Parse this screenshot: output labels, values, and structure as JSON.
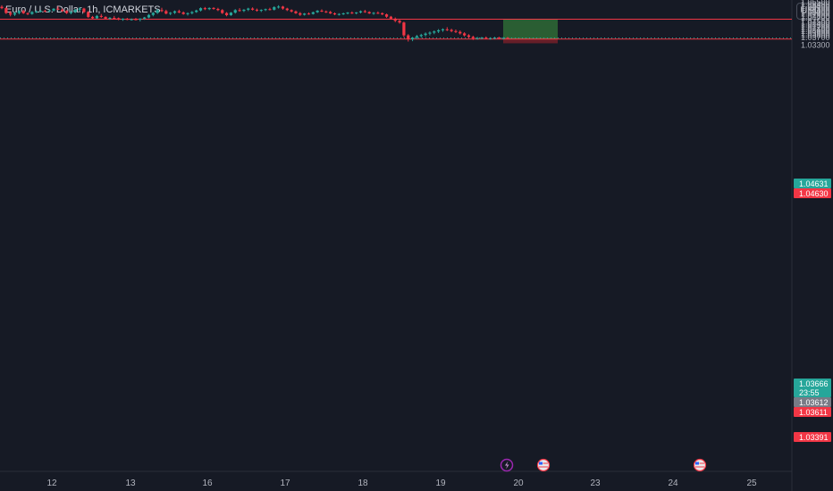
{
  "header": {
    "symbol_title": "Euro / U.S. Dollar, 1h, ICMARKETS",
    "currency_button": "USD"
  },
  "colors": {
    "background": "#161a25",
    "bull": "#26a69a",
    "bear": "#f23645",
    "level_line": "#f23645",
    "profit_zone": "#2e6b36",
    "loss_zone": "#6f1f29"
  },
  "icons": [
    "lightning-event-icon",
    "us-flag-icon",
    "us-flag-icon"
  ],
  "chart_data": {
    "type": "candlestick",
    "instrument": "Euro / U.S. Dollar",
    "interval": "1h",
    "exchange": "ICMARKETS",
    "ylim": [
      1.0327,
      1.0562
    ],
    "y_ticks": [
      "1.05500",
      "1.05400",
      "1.05300",
      "1.05200",
      "1.05100",
      "1.05000",
      "1.04900",
      "1.04800",
      "1.04700",
      "1.04500",
      "1.04400",
      "1.04300",
      "1.04200",
      "1.04100",
      "1.04000",
      "1.03900",
      "1.03800",
      "1.03700",
      "1.03300"
    ],
    "x_ticks": [
      "12",
      "13",
      "16",
      "17",
      "18",
      "19",
      "20",
      "23",
      "24",
      "25"
    ],
    "horizontal_levels": [
      1.0463,
      1.03611
    ],
    "price_labels": [
      {
        "text": "1.04631",
        "color": "#26a69a"
      },
      {
        "text": "1.04630",
        "color": "#f23645"
      },
      {
        "text": "1.03666",
        "color": "#26a69a"
      },
      {
        "text": "23:55",
        "color": "#26a69a"
      },
      {
        "text": "1.03612",
        "color": "#787b86"
      },
      {
        "text": "1.03611",
        "color": "#f23645"
      },
      {
        "text": "1.03391",
        "color": "#f23645"
      }
    ],
    "position": {
      "entry": 1.03611,
      "take_profit": 1.0463,
      "stop_loss": 1.03391,
      "current": 1.03666
    },
    "candles": [
      [
        1.0527,
        1.0535,
        1.0515,
        1.052
      ],
      [
        1.052,
        1.0525,
        1.049,
        1.0495
      ],
      [
        1.0495,
        1.0505,
        1.0478,
        1.0487
      ],
      [
        1.0487,
        1.05,
        1.048,
        1.0495
      ],
      [
        1.0495,
        1.051,
        1.0488,
        1.0505
      ],
      [
        1.0505,
        1.0512,
        1.049,
        1.0494
      ],
      [
        1.0494,
        1.0498,
        1.0484,
        1.049
      ],
      [
        1.049,
        1.0505,
        1.0486,
        1.05
      ],
      [
        1.05,
        1.0508,
        1.0495,
        1.0503
      ],
      [
        1.0503,
        1.051,
        1.0498,
        1.0506
      ],
      [
        1.0506,
        1.0512,
        1.05,
        1.0504
      ],
      [
        1.0504,
        1.0512,
        1.0497,
        1.0508
      ],
      [
        1.0508,
        1.052,
        1.0502,
        1.0517
      ],
      [
        1.0517,
        1.053,
        1.051,
        1.0512
      ],
      [
        1.0512,
        1.0518,
        1.05,
        1.0505
      ],
      [
        1.0505,
        1.051,
        1.049,
        1.0495
      ],
      [
        1.0495,
        1.0505,
        1.0488,
        1.05
      ],
      [
        1.05,
        1.0515,
        1.0495,
        1.0512
      ],
      [
        1.0512,
        1.0525,
        1.0505,
        1.0518
      ],
      [
        1.0518,
        1.0522,
        1.0495,
        1.05
      ],
      [
        1.05,
        1.0505,
        1.047,
        1.0475
      ],
      [
        1.0475,
        1.048,
        1.0462,
        1.0468
      ],
      [
        1.0468,
        1.0485,
        1.0465,
        1.048
      ],
      [
        1.048,
        1.049,
        1.047,
        1.0475
      ],
      [
        1.0475,
        1.0478,
        1.0462,
        1.0466
      ],
      [
        1.0466,
        1.0474,
        1.046,
        1.047
      ],
      [
        1.047,
        1.048,
        1.0465,
        1.0468
      ],
      [
        1.0468,
        1.0472,
        1.0458,
        1.0462
      ],
      [
        1.0462,
        1.0468,
        1.0455,
        1.0465
      ],
      [
        1.0465,
        1.047,
        1.0458,
        1.046
      ],
      [
        1.046,
        1.0467,
        1.0456,
        1.0463
      ],
      [
        1.0463,
        1.047,
        1.0457,
        1.0461
      ],
      [
        1.0461,
        1.0468,
        1.0452,
        1.0466
      ],
      [
        1.0466,
        1.0475,
        1.046,
        1.0472
      ],
      [
        1.0472,
        1.049,
        1.0468,
        1.0485
      ],
      [
        1.0485,
        1.05,
        1.0478,
        1.0496
      ],
      [
        1.0496,
        1.0515,
        1.049,
        1.051
      ],
      [
        1.051,
        1.0522,
        1.05,
        1.0505
      ],
      [
        1.0505,
        1.0512,
        1.0488,
        1.0492
      ],
      [
        1.0492,
        1.05,
        1.0484,
        1.0496
      ],
      [
        1.0496,
        1.0508,
        1.049,
        1.0504
      ],
      [
        1.0504,
        1.0512,
        1.0494,
        1.0498
      ],
      [
        1.0498,
        1.0503,
        1.0486,
        1.049
      ],
      [
        1.049,
        1.0498,
        1.0482,
        1.0494
      ],
      [
        1.0494,
        1.0505,
        1.0488,
        1.05
      ],
      [
        1.05,
        1.0512,
        1.0496,
        1.0508
      ],
      [
        1.0508,
        1.0524,
        1.0503,
        1.052
      ],
      [
        1.052,
        1.0526,
        1.051,
        1.0515
      ],
      [
        1.0515,
        1.0524,
        1.051,
        1.0521
      ],
      [
        1.0521,
        1.0525,
        1.0512,
        1.0516
      ],
      [
        1.0516,
        1.0522,
        1.0505,
        1.051
      ],
      [
        1.051,
        1.0515,
        1.049,
        1.0495
      ],
      [
        1.0495,
        1.05,
        1.0478,
        1.0484
      ],
      [
        1.0484,
        1.05,
        1.048,
        1.0497
      ],
      [
        1.0497,
        1.0515,
        1.0492,
        1.051
      ],
      [
        1.051,
        1.052,
        1.0502,
        1.0506
      ],
      [
        1.0506,
        1.0515,
        1.05,
        1.0512
      ],
      [
        1.0512,
        1.0522,
        1.0505,
        1.0518
      ],
      [
        1.0518,
        1.0524,
        1.0508,
        1.0512
      ],
      [
        1.0512,
        1.0518,
        1.0502,
        1.0508
      ],
      [
        1.0508,
        1.0514,
        1.05,
        1.0511
      ],
      [
        1.0511,
        1.0518,
        1.0505,
        1.0515
      ],
      [
        1.0515,
        1.0522,
        1.0508,
        1.0512
      ],
      [
        1.0512,
        1.053,
        1.0508,
        1.0525
      ],
      [
        1.0525,
        1.0535,
        1.0518,
        1.0528
      ],
      [
        1.0528,
        1.0532,
        1.0512,
        1.0518
      ],
      [
        1.0518,
        1.0522,
        1.0505,
        1.051
      ],
      [
        1.051,
        1.0514,
        1.0498,
        1.0503
      ],
      [
        1.0503,
        1.0508,
        1.049,
        1.0494
      ],
      [
        1.0494,
        1.05,
        1.048,
        1.0486
      ],
      [
        1.0486,
        1.0495,
        1.0482,
        1.0492
      ],
      [
        1.0492,
        1.0498,
        1.0486,
        1.049
      ],
      [
        1.049,
        1.0502,
        1.0487,
        1.0499
      ],
      [
        1.0499,
        1.051,
        1.0495,
        1.0507
      ],
      [
        1.0507,
        1.0514,
        1.05,
        1.0503
      ],
      [
        1.0503,
        1.0508,
        1.0495,
        1.05
      ],
      [
        1.05,
        1.0506,
        1.049,
        1.0493
      ],
      [
        1.0493,
        1.0498,
        1.0484,
        1.0488
      ],
      [
        1.0488,
        1.0494,
        1.0482,
        1.049
      ],
      [
        1.049,
        1.0497,
        1.0485,
        1.0493
      ],
      [
        1.0493,
        1.05,
        1.0488,
        1.0497
      ],
      [
        1.0497,
        1.0503,
        1.049,
        1.0494
      ],
      [
        1.0494,
        1.05,
        1.0488,
        1.0498
      ],
      [
        1.0498,
        1.0508,
        1.0493,
        1.0504
      ],
      [
        1.0504,
        1.0511,
        1.0496,
        1.05
      ],
      [
        1.05,
        1.0504,
        1.049,
        1.0493
      ],
      [
        1.0493,
        1.05,
        1.0486,
        1.0496
      ],
      [
        1.0496,
        1.0503,
        1.049,
        1.0494
      ],
      [
        1.0494,
        1.0498,
        1.0484,
        1.0488
      ],
      [
        1.0488,
        1.0492,
        1.047,
        1.0476
      ],
      [
        1.0476,
        1.048,
        1.0462,
        1.0466
      ],
      [
        1.0466,
        1.0472,
        1.0448,
        1.0455
      ],
      [
        1.0455,
        1.046,
        1.044,
        1.0446
      ],
      [
        1.0446,
        1.045,
        1.037,
        1.038
      ],
      [
        1.038,
        1.0386,
        1.0348,
        1.036
      ],
      [
        1.036,
        1.0372,
        1.035,
        1.0368
      ],
      [
        1.0368,
        1.0382,
        1.036,
        1.0376
      ],
      [
        1.0376,
        1.0388,
        1.0368,
        1.0382
      ],
      [
        1.0382,
        1.0395,
        1.0374,
        1.0389
      ],
      [
        1.0389,
        1.04,
        1.038,
        1.0394
      ],
      [
        1.0394,
        1.0405,
        1.0386,
        1.04
      ],
      [
        1.04,
        1.0412,
        1.0392,
        1.0406
      ],
      [
        1.0406,
        1.0416,
        1.0398,
        1.0411
      ],
      [
        1.0411,
        1.0422,
        1.0402,
        1.0408
      ],
      [
        1.0408,
        1.0414,
        1.0396,
        1.0402
      ],
      [
        1.0402,
        1.041,
        1.0392,
        1.0398
      ],
      [
        1.0398,
        1.0405,
        1.0384,
        1.039
      ],
      [
        1.039,
        1.0396,
        1.0374,
        1.038
      ],
      [
        1.038,
        1.0386,
        1.0366,
        1.0372
      ],
      [
        1.0372,
        1.0378,
        1.0356,
        1.0364
      ],
      [
        1.0364,
        1.0372,
        1.0358,
        1.0366
      ],
      [
        1.0366,
        1.0372,
        1.036,
        1.0368
      ],
      [
        1.0368,
        1.0374,
        1.036,
        1.0364
      ],
      [
        1.0364,
        1.037,
        1.0358,
        1.0366
      ],
      [
        1.0366,
        1.0372,
        1.036,
        1.0368
      ],
      [
        1.0368,
        1.0373,
        1.036,
        1.0364
      ],
      [
        1.0364,
        1.0371,
        1.0359,
        1.0367
      ],
      [
        1.0367,
        1.0372,
        1.0361,
        1.0366
      ]
    ]
  }
}
